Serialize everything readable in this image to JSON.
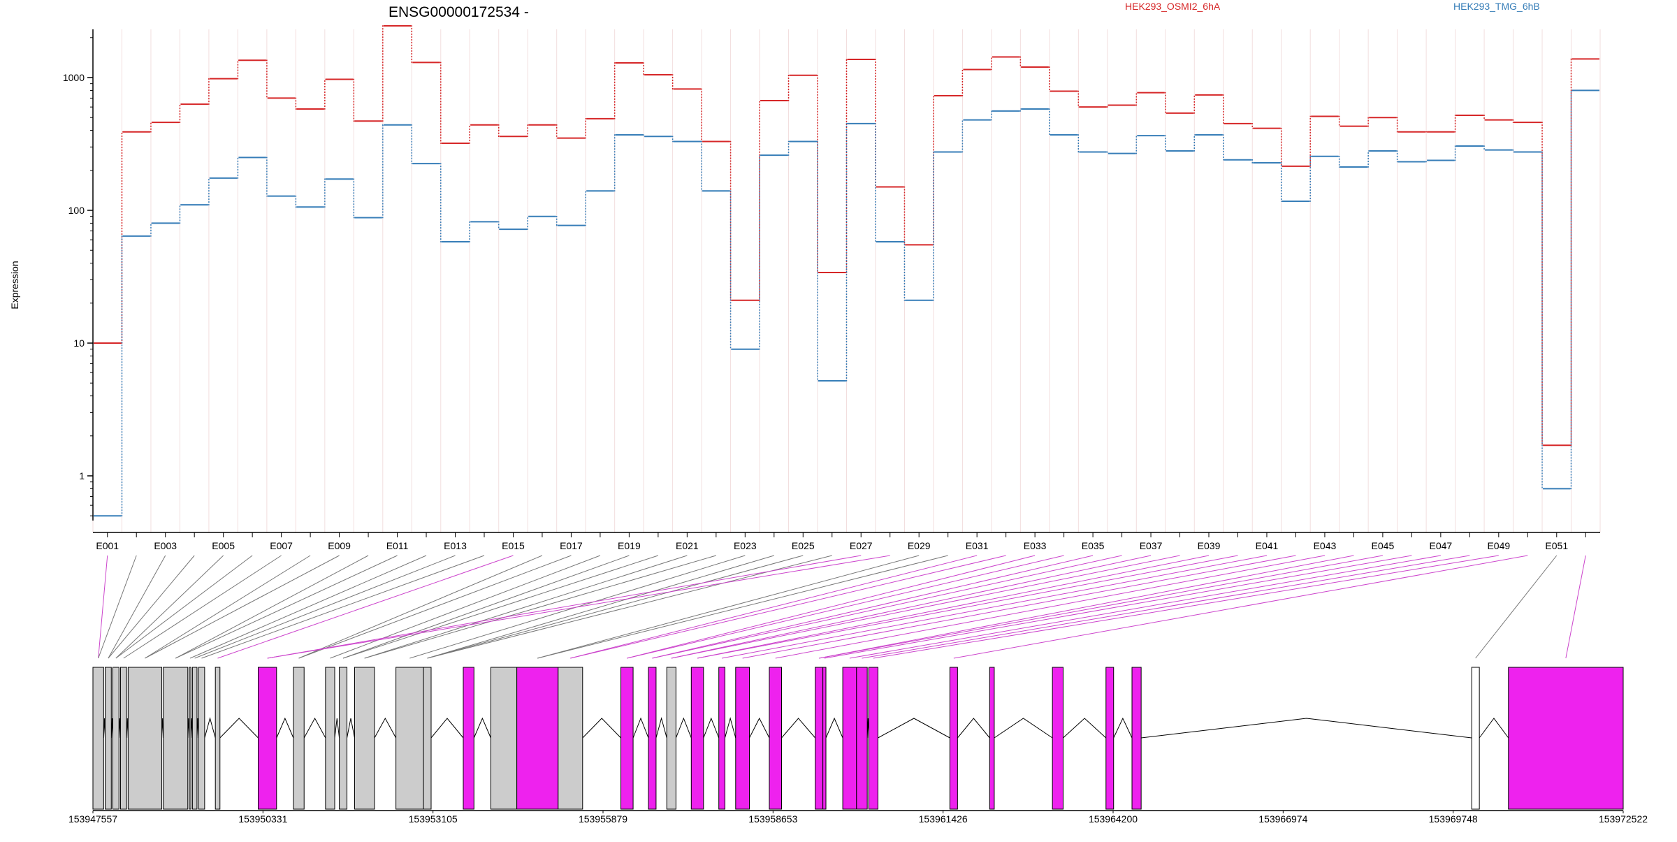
{
  "chart_data": {
    "type": "line",
    "title": "ENSG00000172534 -",
    "ylabel": "Expression",
    "yscale": "log",
    "yticks": [
      "1",
      "10",
      "100",
      "1000"
    ],
    "xticks": [
      "E001",
      "E003",
      "E005",
      "E007",
      "E009",
      "E011",
      "E013",
      "E015",
      "E017",
      "E019",
      "E021",
      "E023",
      "E025",
      "E027",
      "E029",
      "E031",
      "E033",
      "E035",
      "E037",
      "E039",
      "E041",
      "E043",
      "E045",
      "E047",
      "E049",
      "E051"
    ],
    "colors": {
      "series_a": "#d62728",
      "series_b": "#377eb8",
      "exon_constitutive": "#cccccc",
      "exon_differential": "#ee22ee",
      "grid": "#f2dede"
    },
    "series": [
      {
        "name": "HEK293_OSMI2_6hA",
        "values": [
          10,
          390,
          460,
          630,
          980,
          1350,
          700,
          580,
          970,
          470,
          2450,
          1300,
          320,
          440,
          360,
          440,
          350,
          490,
          1290,
          1050,
          820,
          330,
          21,
          670,
          1040,
          34,
          1370,
          150,
          55,
          730,
          1150,
          1430,
          1200,
          790,
          600,
          620,
          770,
          540,
          740,
          450,
          415,
          215,
          510,
          430,
          500,
          390,
          390,
          520,
          480,
          460,
          1.7,
          1380
        ]
      },
      {
        "name": "HEK293_TMG_6hB",
        "values": [
          0.5,
          64,
          80,
          110,
          175,
          250,
          128,
          106,
          172,
          88,
          440,
          225,
          58,
          82,
          72,
          90,
          77,
          140,
          370,
          360,
          330,
          140,
          9,
          260,
          330,
          5.2,
          450,
          58,
          21,
          275,
          480,
          560,
          580,
          370,
          275,
          268,
          365,
          280,
          370,
          240,
          228,
          117,
          255,
          212,
          280,
          232,
          238,
          305,
          285,
          275,
          0.8,
          800
        ]
      }
    ],
    "gene_model": {
      "genomic_ticks": [
        "153947557",
        "153950331",
        "153953105",
        "153955879",
        "153958653",
        "153961426",
        "153964200",
        "153966974",
        "153969748",
        "153972522"
      ],
      "exon_bin_status": [
        "diff",
        "const",
        "const",
        "const",
        "const",
        "const",
        "const",
        "const",
        "const",
        "const",
        "const",
        "const",
        "const",
        "const",
        "diff",
        "const",
        "const",
        "const",
        "const",
        "const",
        "const",
        "const",
        "const",
        "const",
        "const",
        "const",
        "diff",
        "diff",
        "const",
        "const",
        "diff",
        "diff",
        "diff",
        "diff",
        "diff",
        "diff",
        "diff",
        "diff",
        "diff",
        "diff",
        "diff",
        "diff",
        "diff",
        "diff",
        "diff",
        "diff",
        "diff",
        "diff",
        "diff",
        "diff",
        "const",
        "diff"
      ]
    }
  }
}
